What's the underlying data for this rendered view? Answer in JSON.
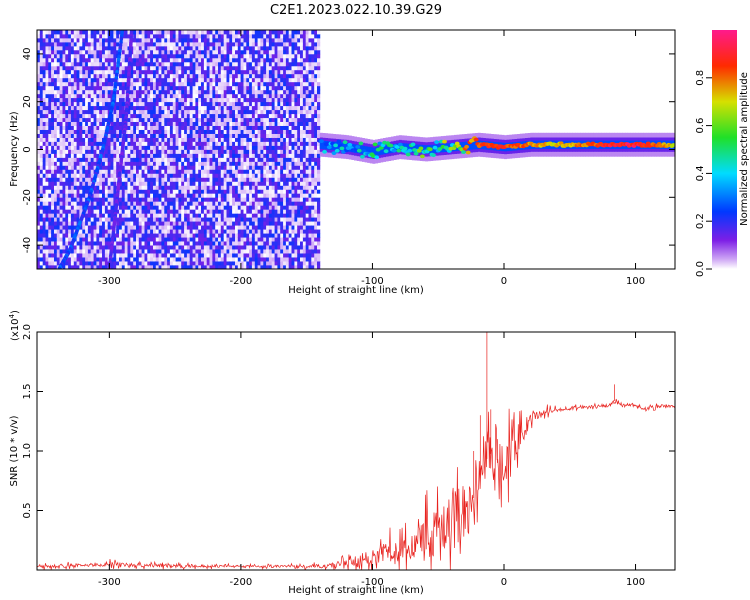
{
  "chart_data": [
    {
      "type": "heatmap",
      "title": "C2E1.2023.022.10.39.G29",
      "xlabel": "Height of straight line (km)",
      "ylabel": "Frequency (Hz)",
      "xlim": [
        -355,
        130
      ],
      "ylim": [
        -50,
        50
      ],
      "x_ticks": [
        -300,
        -200,
        -100,
        0,
        100
      ],
      "x_tick_labels": [
        "-300",
        "-200",
        "-100",
        "0",
        "100"
      ],
      "y_ticks": [
        -40,
        -20,
        0,
        20,
        40
      ],
      "y_tick_labels": [
        "-40",
        "-20",
        "0",
        "20",
        "40"
      ],
      "colorbar": {
        "label": "Normalized spectral amplitude",
        "range": [
          0,
          1
        ],
        "ticks": [
          0.0,
          0.2,
          0.4,
          0.6,
          0.8
        ],
        "tick_labels": [
          "0.0",
          "0.2",
          "0.4",
          "0.6",
          "0.8"
        ],
        "colors": [
          "#ffffff",
          "#7d1fe6",
          "#0038ff",
          "#00dcff",
          "#20e028",
          "#d6e000",
          "#ff2a00",
          "#ff1a8c"
        ]
      },
      "noise_region_x": [
        -355,
        -140
      ],
      "noise_mean_amplitude": 0.15,
      "ridge_lines": [
        {
          "points": [
            [
              -290,
              50
            ],
            [
              -297,
              20
            ],
            [
              -305,
              0
            ],
            [
              -315,
              -20
            ],
            [
              -330,
              -42
            ],
            [
              -338,
              -50
            ]
          ],
          "amplitude": 0.22
        },
        {
          "points": [
            [
              -283,
              50
            ],
            [
              -287,
              15
            ],
            [
              -293,
              -15
            ],
            [
              -300,
              -50
            ]
          ],
          "amplitude": 0.14
        }
      ],
      "signal_band": {
        "points": [
          [
            -140,
            2
          ],
          [
            -120,
            1
          ],
          [
            -100,
            -1
          ],
          [
            -80,
            1
          ],
          [
            -60,
            0
          ],
          [
            -40,
            1
          ],
          [
            -20,
            2
          ],
          [
            0,
            1
          ],
          [
            20,
            2
          ],
          [
            60,
            2
          ],
          [
            100,
            2
          ],
          [
            130,
            2
          ]
        ],
        "amplitude": [
          [
            -140,
            0.35
          ],
          [
            -100,
            0.45
          ],
          [
            -60,
            0.55
          ],
          [
            -40,
            0.62
          ],
          [
            -20,
            0.85
          ],
          [
            0,
            0.88
          ],
          [
            40,
            0.72
          ],
          [
            80,
            0.9
          ],
          [
            100,
            0.95
          ],
          [
            130,
            0.72
          ]
        ]
      }
    },
    {
      "type": "line",
      "xlabel": "Height of straight line (km)",
      "ylabel": "SNR (10 * v/v)",
      "y_multiplier_label": "(x10",
      "y_multiplier_exp": "4",
      "xlim": [
        -355,
        130
      ],
      "ylim": [
        0,
        20000
      ],
      "x_ticks": [
        -300,
        -200,
        -100,
        0,
        100
      ],
      "x_tick_labels": [
        "-300",
        "-200",
        "-100",
        "0",
        "100"
      ],
      "y_ticks": [
        5000,
        10000,
        15000,
        20000
      ],
      "y_tick_labels": [
        "0.5",
        "1.0",
        "1.5",
        "2.0"
      ],
      "series": [
        {
          "color": "#e8221e",
          "x": [
            -355,
            -320,
            -300,
            -280,
            -250,
            -200,
            -150,
            -130,
            -115,
            -100,
            -90,
            -80,
            -70,
            -60,
            -50,
            -40,
            -30,
            -20,
            -15,
            -12,
            -8,
            -5,
            0,
            5,
            10,
            20,
            30,
            40,
            60,
            80,
            84,
            90,
            100,
            105,
            120,
            130
          ],
          "y": [
            300,
            400,
            500,
            400,
            350,
            300,
            300,
            400,
            700,
            1100,
            1400,
            1700,
            2100,
            2600,
            3200,
            4000,
            5000,
            6500,
            9000,
            9500,
            10000,
            9000,
            8500,
            9500,
            11000,
            12500,
            13300,
            13500,
            13700,
            13800,
            14200,
            13900,
            13900,
            13500,
            13800,
            13700
          ],
          "noise": [
            150,
            150,
            200,
            150,
            150,
            100,
            120,
            250,
            400,
            600,
            900,
            1100,
            1500,
            1800,
            2200,
            2500,
            2800,
            2500,
            2000,
            1800,
            1600,
            2000,
            2500,
            1800,
            1200,
            600,
            300,
            200,
            120,
            120,
            120,
            120,
            120,
            150,
            120,
            120
          ],
          "spikes": [
            [
              -13,
              20000
            ],
            [
              -18,
              13000
            ],
            [
              -23,
              10000
            ],
            [
              -10,
              13500
            ],
            [
              -5,
              11000
            ],
            [
              84,
              15600
            ]
          ]
        }
      ]
    }
  ]
}
